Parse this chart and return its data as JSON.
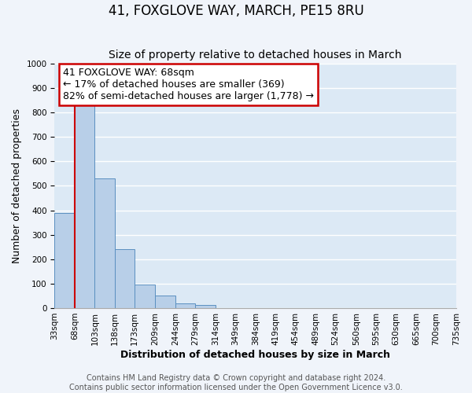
{
  "title": "41, FOXGLOVE WAY, MARCH, PE15 8RU",
  "subtitle": "Size of property relative to detached houses in March",
  "xlabel": "Distribution of detached houses by size in March",
  "ylabel": "Number of detached properties",
  "bin_edges": [
    33,
    68,
    103,
    138,
    173,
    209,
    244,
    279,
    314,
    349,
    384,
    419,
    454,
    489,
    524,
    560,
    595,
    630,
    665,
    700,
    735
  ],
  "bin_labels": [
    "33sqm",
    "68sqm",
    "103sqm",
    "138sqm",
    "173sqm",
    "209sqm",
    "244sqm",
    "279sqm",
    "314sqm",
    "349sqm",
    "384sqm",
    "419sqm",
    "454sqm",
    "489sqm",
    "524sqm",
    "560sqm",
    "595sqm",
    "630sqm",
    "665sqm",
    "700sqm",
    "735sqm"
  ],
  "counts": [
    390,
    830,
    530,
    240,
    95,
    52,
    20,
    13,
    0,
    0,
    0,
    0,
    0,
    0,
    0,
    0,
    0,
    0,
    0,
    0
  ],
  "bar_color": "#b8cfe8",
  "bar_edge_color": "#5a8fc0",
  "property_line_x": 68,
  "property_line_color": "#cc0000",
  "annotation_line1": "41 FOXGLOVE WAY: 68sqm",
  "annotation_line2": "← 17% of detached houses are smaller (369)",
  "annotation_line3": "82% of semi-detached houses are larger (1,778) →",
  "annotation_box_color": "#cc0000",
  "ylim": [
    0,
    1000
  ],
  "yticks": [
    0,
    100,
    200,
    300,
    400,
    500,
    600,
    700,
    800,
    900,
    1000
  ],
  "footer_line1": "Contains HM Land Registry data © Crown copyright and database right 2024.",
  "footer_line2": "Contains public sector information licensed under the Open Government Licence v3.0.",
  "plot_bg_color": "#dce9f5",
  "fig_bg_color": "#f0f4fa",
  "grid_color": "#ffffff",
  "title_fontsize": 12,
  "subtitle_fontsize": 10,
  "axis_label_fontsize": 9,
  "tick_fontsize": 7.5,
  "footer_fontsize": 7,
  "annotation_fontsize": 9
}
